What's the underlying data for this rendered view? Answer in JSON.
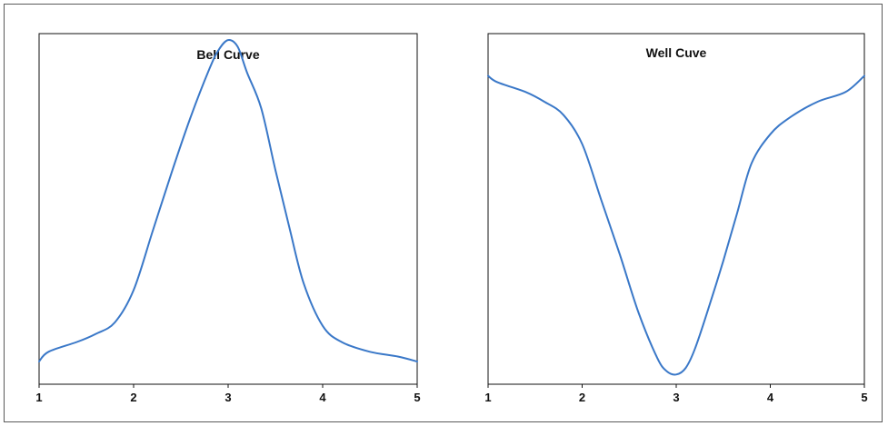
{
  "chart_data": [
    {
      "type": "line",
      "title": "Bell Curve",
      "xlabel": "",
      "ylabel": "",
      "xlim": [
        1,
        5
      ],
      "ylim": [
        0,
        1.08
      ],
      "x_ticks": [
        "1",
        "2",
        "3",
        "4",
        "5"
      ],
      "y_ticks": [],
      "grid": false,
      "series": [
        {
          "color": "#3a78c8",
          "x": [
            1.0,
            1.1,
            1.4,
            1.6,
            1.8,
            2.0,
            2.2,
            2.4,
            2.6,
            2.8,
            2.9,
            3.0,
            3.1,
            3.2,
            3.35,
            3.5,
            3.65,
            3.8,
            4.0,
            4.2,
            4.5,
            4.8,
            5.0
          ],
          "y": [
            0.07,
            0.1,
            0.13,
            0.155,
            0.19,
            0.29,
            0.47,
            0.65,
            0.82,
            0.97,
            1.03,
            1.06,
            1.04,
            0.96,
            0.85,
            0.66,
            0.48,
            0.31,
            0.18,
            0.13,
            0.1,
            0.085,
            0.07
          ]
        }
      ]
    },
    {
      "type": "line",
      "title": "Well Cuve",
      "xlabel": "",
      "ylabel": "",
      "xlim": [
        1,
        5
      ],
      "ylim": [
        0,
        1.08
      ],
      "x_ticks": [
        "1",
        "2",
        "3",
        "4",
        "5"
      ],
      "y_ticks": [],
      "grid": false,
      "series": [
        {
          "color": "#3a78c8",
          "x": [
            1.0,
            1.1,
            1.4,
            1.6,
            1.8,
            2.0,
            2.2,
            2.4,
            2.6,
            2.8,
            2.9,
            3.0,
            3.1,
            3.2,
            3.35,
            3.5,
            3.65,
            3.8,
            4.0,
            4.2,
            4.5,
            4.8,
            5.0
          ],
          "y": [
            0.95,
            0.93,
            0.9,
            0.87,
            0.83,
            0.74,
            0.57,
            0.4,
            0.22,
            0.08,
            0.04,
            0.03,
            0.05,
            0.11,
            0.24,
            0.38,
            0.53,
            0.68,
            0.77,
            0.82,
            0.87,
            0.9,
            0.95
          ]
        }
      ]
    }
  ]
}
